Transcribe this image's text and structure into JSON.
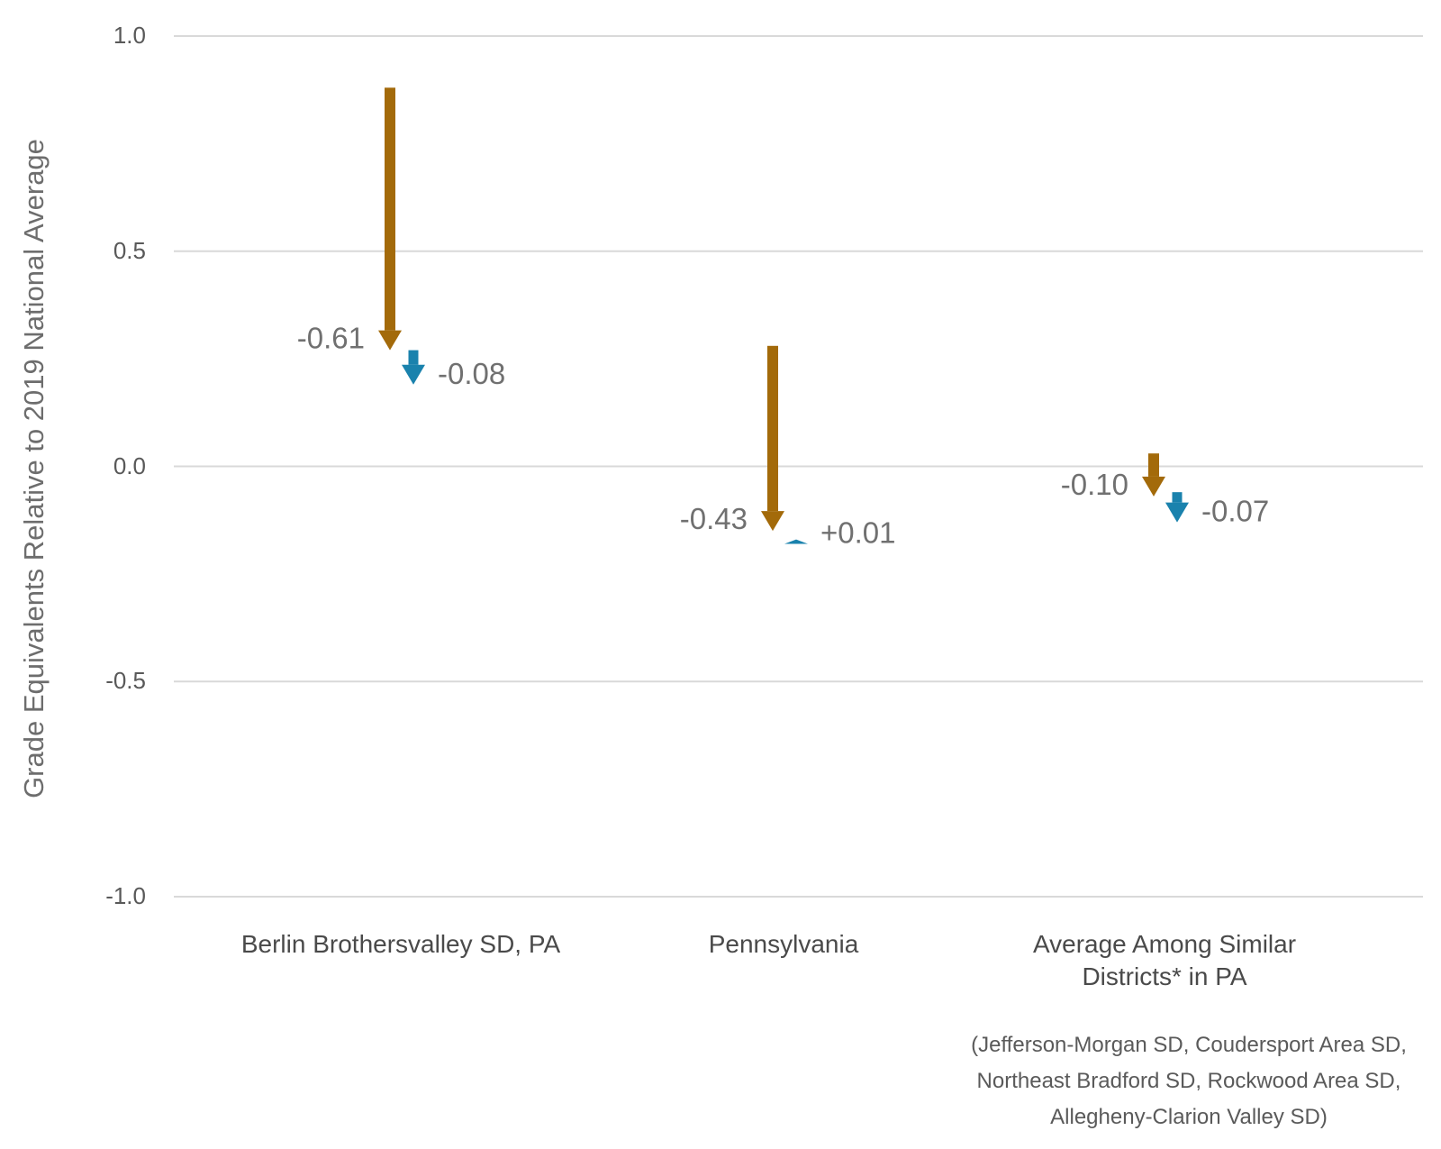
{
  "chart_data": {
    "type": "arrow-change",
    "ylabel": "Grade Equivalents Relative to 2019 National Average",
    "ylim": [
      -1.0,
      1.0
    ],
    "yticks": [
      {
        "value": 1.0,
        "label": "1.0"
      },
      {
        "value": 0.5,
        "label": "0.5"
      },
      {
        "value": 0.0,
        "label": "0.0"
      },
      {
        "value": -0.5,
        "label": "-0.5"
      },
      {
        "value": -1.0,
        "label": "-1.0"
      }
    ],
    "grid": true,
    "categories": [
      "Berlin Brothersvalley SD, PA",
      "Pennsylvania",
      "Average Among Similar Districts* in PA"
    ],
    "footnote": "(Jefferson-Morgan SD, Coudersport Area SD, Northeast Bradford SD, Rockwood Area SD, Allegheny-Clarion Valley SD)",
    "series": [
      {
        "color": "#a36a0a",
        "points": [
          {
            "start": 0.88,
            "end": 0.27,
            "label": "-0.61"
          },
          {
            "start": 0.28,
            "end": -0.15,
            "label": "-0.43"
          },
          {
            "start": 0.03,
            "end": -0.07,
            "label": "-0.10"
          }
        ]
      },
      {
        "color": "#1a82ad",
        "points": [
          {
            "start": 0.27,
            "end": 0.19,
            "label": "-0.08"
          },
          {
            "start": -0.18,
            "end": -0.17,
            "label": "+0.01"
          },
          {
            "start": -0.06,
            "end": -0.13,
            "label": "-0.07"
          }
        ]
      }
    ]
  }
}
